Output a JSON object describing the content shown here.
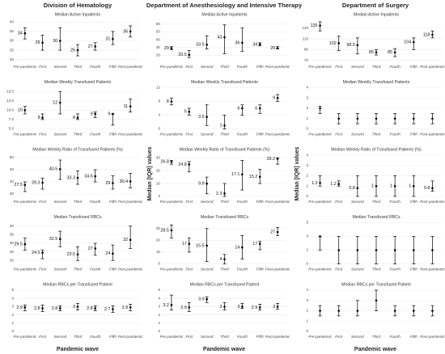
{
  "columns": [
    "Division of Hematology",
    "Department of Anesthesiology and Intensive Therapy",
    "Department of Surgery"
  ],
  "x_label": "Pandemic wave",
  "y_label": "Median [IQR] values",
  "chart_data": [
    {
      "type": "errorbar",
      "title": "Median Active Inpatients",
      "categories": [
        "Pre-pandemic",
        "First",
        "Second",
        "Third",
        "Fourth",
        "Fifth",
        "Post-pandemic"
      ],
      "values": [
        34,
        29,
        30,
        25,
        27,
        31,
        35
      ],
      "lower": [
        31,
        25,
        25,
        22,
        25,
        28,
        32
      ],
      "upper": [
        37,
        33,
        37,
        28,
        29,
        35,
        38
      ],
      "ylim": [
        19,
        41
      ],
      "yticks": [
        20,
        25,
        30,
        35,
        40
      ],
      "grid": true,
      "data_labels": true,
      "color": "#000000"
    },
    {
      "type": "errorbar",
      "title": "Median Weekly Transfused Patients",
      "categories": [
        "Pre-pandemic",
        "First",
        "Second",
        "Third",
        "Fourth",
        "Fifth",
        "Post-pandemic"
      ],
      "values": [
        10,
        8,
        12,
        8,
        9,
        9,
        11
      ],
      "lower": [
        9,
        7.5,
        9,
        7.5,
        8,
        6,
        9.5
      ],
      "upper": [
        11,
        9,
        15,
        9,
        9.5,
        9,
        13
      ],
      "ylim": [
        5,
        16
      ],
      "yticks": [
        {
          "value": 5,
          "label": "5.0"
        },
        {
          "value": 7.5,
          "label": "7.5"
        },
        {
          "value": 10,
          "label": "10.0"
        },
        {
          "value": 12.5,
          "label": "12.5"
        },
        {
          "value": 15,
          "label": "15.0"
        }
      ],
      "grid": true,
      "data_labels": true,
      "color": "#000000"
    },
    {
      "type": "errorbar",
      "title": "Median Weekly Ratio of Transfused Patients (%)",
      "categories": [
        "Pre-pandemic",
        "First",
        "Second",
        "Third",
        "Fourth",
        "Fifth",
        "Post-pandemic"
      ],
      "values": [
        27.5,
        29.3,
        40.5,
        33.3,
        34.6,
        29,
        30.4
      ],
      "lower": [
        22,
        24,
        32,
        28,
        30,
        24,
        25
      ],
      "upper": [
        30,
        33,
        48,
        39,
        40,
        35,
        37
      ],
      "ylim": [
        18,
        52
      ],
      "yticks": [
        20,
        30,
        40,
        50
      ],
      "grid": true,
      "data_labels": true,
      "color": "#000000"
    },
    {
      "type": "errorbar",
      "title": "Median Transfused RBCs",
      "categories": [
        "Pre-pandemic",
        "First",
        "Second",
        "Third",
        "Fourth",
        "Fifth",
        "Post-pandemic"
      ],
      "values": [
        29.5,
        24.5,
        32.5,
        23.5,
        27,
        24,
        32
      ],
      "lower": [
        26,
        21,
        28,
        20,
        23,
        20,
        27
      ],
      "upper": [
        33,
        26,
        37,
        28,
        30,
        29,
        40
      ],
      "ylim": [
        18,
        42
      ],
      "yticks": [
        20,
        25,
        30,
        35,
        40
      ],
      "grid": true,
      "data_labels": true,
      "color": "#000000"
    },
    {
      "type": "errorbar",
      "title": "Median RBCs per Transfused Patient",
      "categories": [
        "Pre-pandemic",
        "First",
        "Second",
        "Third",
        "Fourth",
        "Fifth",
        "Post-pandemic"
      ],
      "values": [
        2.9,
        2.8,
        2.8,
        3,
        2.8,
        2.7,
        2.9
      ],
      "lower": [
        2.5,
        2.4,
        2.5,
        2.6,
        2.5,
        2.3,
        2.5
      ],
      "upper": [
        3.2,
        3.2,
        3.1,
        3.4,
        3.1,
        3.1,
        3.3
      ],
      "ylim": [
        0,
        5
      ],
      "yticks": [
        0,
        1,
        2,
        3,
        4,
        5
      ],
      "grid": true,
      "data_labels": true,
      "color": "#000000"
    },
    {
      "type": "errorbar",
      "title": "Median Active Inpatients",
      "categories": [
        "Pre-pandemic",
        "First",
        "Second",
        "Third",
        "Fourth",
        "Fifth",
        "Post-pandemic"
      ],
      "values": [
        29,
        20.5,
        33.5,
        43,
        36,
        34,
        29
      ],
      "lower": [
        27,
        17,
        28,
        22,
        25,
        32,
        28
      ],
      "upper": [
        31,
        26,
        45,
        59,
        55,
        36,
        31
      ],
      "ylim": [
        12,
        65
      ],
      "yticks": [
        20,
        30,
        40,
        50,
        60
      ],
      "grid": true,
      "data_labels": true,
      "color": "#000000"
    },
    {
      "type": "errorbar",
      "title": "Median Weekly Transfused Patients",
      "categories": [
        "Pre-pandemic",
        "First",
        "Second",
        "Third",
        "Fourth",
        "Fifth",
        "Post-pandemic"
      ],
      "values": [
        8,
        5,
        3.5,
        1,
        6,
        6,
        9
      ],
      "lower": [
        7,
        4,
        1,
        0,
        4,
        4.5,
        8
      ],
      "upper": [
        9,
        6,
        7,
        4,
        7,
        7,
        10
      ],
      "ylim": [
        0,
        12
      ],
      "yticks": [
        0,
        4,
        8,
        12
      ],
      "grid": true,
      "data_labels": true,
      "color": "#000000"
    },
    {
      "type": "errorbar",
      "title": "Median Weekly Ratio of Transfused Patients (%)",
      "categories": [
        "Pre-pandemic",
        "First",
        "Second",
        "Third",
        "Fourth",
        "Fifth",
        "Post-pandemic"
      ],
      "values": [
        26.8,
        24.8,
        9.9,
        2.3,
        17.1,
        15.2,
        29.2
      ],
      "lower": [
        25,
        19,
        2,
        0,
        5,
        10,
        25
      ],
      "upper": [
        28,
        27,
        15,
        10,
        28,
        21,
        30
      ],
      "ylim": [
        0,
        32
      ],
      "yticks": [
        0,
        10,
        20,
        30
      ],
      "grid": true,
      "data_labels": true,
      "color": "#000000"
    },
    {
      "type": "errorbar",
      "title": "Median Transfused RBCs",
      "categories": [
        "Pre-pandemic",
        "First",
        "Second",
        "Third",
        "Fourth",
        "Fifth",
        "Post-pandemic"
      ],
      "values": [
        28.5,
        17,
        15.5,
        4,
        14,
        17,
        27
      ],
      "lower": [
        22,
        10,
        2,
        0,
        4,
        12,
        24
      ],
      "upper": [
        33,
        22,
        30,
        8,
        24,
        19,
        31
      ],
      "ylim": [
        0,
        35
      ],
      "yticks": [
        0,
        10,
        20,
        30
      ],
      "grid": true,
      "data_labels": true,
      "color": "#000000"
    },
    {
      "type": "errorbar",
      "title": "Median RBCs per Transfused Patient",
      "categories": [
        "Pre-pandemic",
        "First",
        "Second",
        "Third",
        "Fourth",
        "Fifth",
        "Post-pandemic"
      ],
      "values": [
        3.2,
        2.9,
        3.9,
        3,
        3,
        2.9,
        3
      ],
      "lower": [
        2.6,
        2.4,
        3.5,
        2.6,
        2.8,
        2.6,
        2.7
      ],
      "upper": [
        4.4,
        3.5,
        4.2,
        3.5,
        3.4,
        3.3,
        3.4
      ],
      "ylim": [
        0,
        5
      ],
      "yticks": [
        0,
        1,
        2,
        3,
        4,
        5
      ],
      "grid": true,
      "data_labels": true,
      "color": "#000000"
    },
    {
      "type": "errorbar",
      "title": "Median Active Inpatients",
      "categories": [
        "Pre-pandemic",
        "First",
        "Second",
        "Third",
        "Fourth",
        "Fifth",
        "Post-pandemic"
      ],
      "values": [
        135,
        102,
        98.5,
        85,
        85,
        104,
        118
      ],
      "lower": [
        125,
        88,
        82,
        80,
        77,
        90,
        112
      ],
      "upper": [
        142,
        115,
        112,
        90,
        92,
        112,
        125
      ],
      "ylim": [
        68,
        145
      ],
      "yticks": [
        70,
        90,
        110,
        130
      ],
      "grid": true,
      "data_labels": true,
      "color": "#000000"
    },
    {
      "type": "errorbar",
      "title": "Median Weekly Transfused Patients",
      "categories": [
        "Pre-pandemic",
        "First",
        "Second",
        "Third",
        "Fourth",
        "Fifth",
        "Post-pandemic"
      ],
      "values": [
        2,
        1,
        1,
        1,
        1,
        1,
        1
      ],
      "lower": [
        1.5,
        0.5,
        0.5,
        0.5,
        0.5,
        0.5,
        0.5
      ],
      "upper": [
        2.2,
        1.5,
        1.5,
        1.5,
        1.5,
        1.5,
        1.5
      ],
      "ylim": [
        0,
        4
      ],
      "yticks": [
        0,
        1,
        2,
        3,
        4
      ],
      "grid": true,
      "data_labels": false,
      "color": "#000000"
    },
    {
      "type": "errorbar",
      "title": "Median Weekly Ratio of Transfused Patients (%)",
      "categories": [
        "Pre-pandemic",
        "First",
        "Second",
        "Third",
        "Fourth",
        "Fifth",
        "Post-pandemic"
      ],
      "values": [
        1.3,
        1.2,
        0.8,
        1,
        1,
        1,
        0.8
      ],
      "lower": [
        1,
        1,
        0,
        0,
        0,
        0,
        0.5
      ],
      "upper": [
        2,
        1.5,
        2,
        2,
        2,
        2,
        1.5
      ],
      "ylim": [
        0,
        4
      ],
      "yticks": [
        0,
        1,
        2,
        3,
        4
      ],
      "grid": true,
      "data_labels": true,
      "color": "#000000"
    },
    {
      "type": "errorbar",
      "title": "Median Transfused RBCs",
      "categories": [
        "Pre-pandemic",
        "First",
        "Second",
        "Third",
        "Fourth",
        "Fifth",
        "Post-pandemic"
      ],
      "values": [
        4,
        2,
        2,
        2,
        2,
        2,
        2
      ],
      "lower": [
        2,
        0,
        0,
        0,
        0,
        0,
        0
      ],
      "upper": [
        4,
        4,
        4,
        4,
        4,
        4,
        4
      ],
      "ylim": [
        0,
        6
      ],
      "yticks": [
        0,
        2,
        4,
        6
      ],
      "grid": true,
      "data_labels": false,
      "color": "#000000"
    },
    {
      "type": "errorbar",
      "title": "Median RBCs per Transfused Patient",
      "categories": [
        "Pre-pandemic",
        "First",
        "Second",
        "Third",
        "Fourth",
        "Fifth",
        "Post-pandemic"
      ],
      "values": [
        2,
        2,
        2,
        3,
        2,
        2,
        2
      ],
      "lower": [
        1.5,
        1.5,
        1.5,
        2,
        1.5,
        1.5,
        1.5
      ],
      "upper": [
        2.5,
        2.5,
        3,
        4,
        2.5,
        2.5,
        2.5
      ],
      "ylim": [
        0,
        4
      ],
      "yticks": [
        0,
        1,
        2,
        3,
        4
      ],
      "grid": true,
      "data_labels": false,
      "color": "#000000"
    }
  ]
}
